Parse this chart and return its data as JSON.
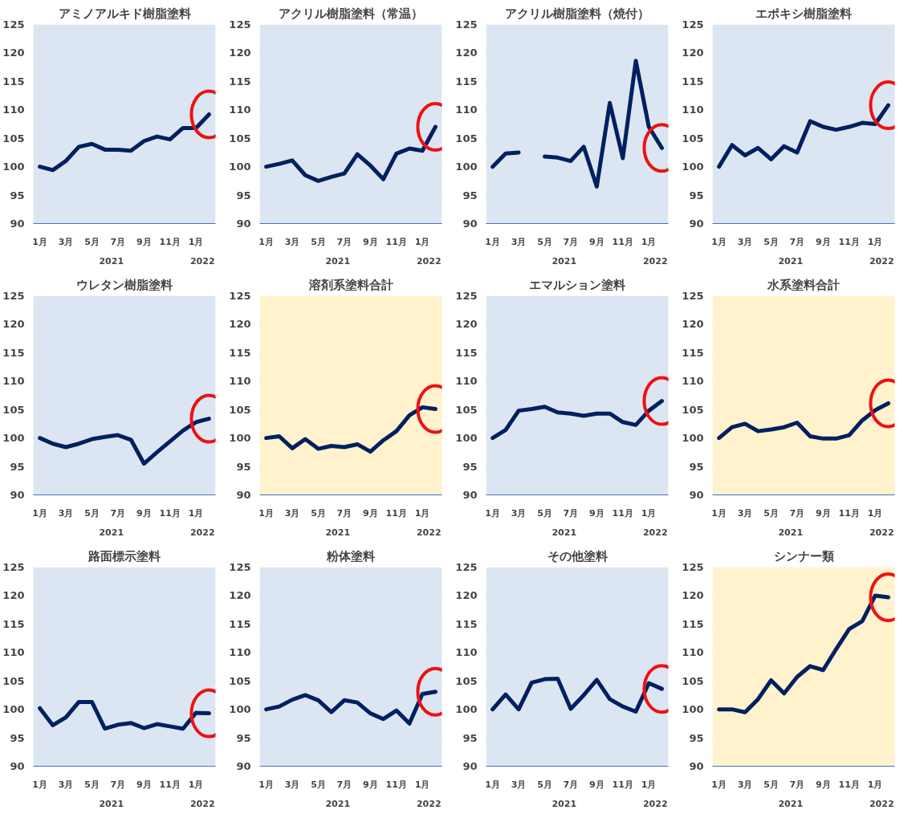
{
  "chart_data": [
    {
      "type": "line",
      "title": "アミノアルキド樹脂塗料",
      "categories": [
        "1月",
        null,
        "3月",
        null,
        "5月",
        null,
        "7月",
        null,
        "9月",
        null,
        "11月",
        null,
        "1月",
        null
      ],
      "values": [
        100,
        99.4,
        101,
        103.5,
        104,
        103,
        103,
        102.8,
        104.5,
        105.3,
        104.8,
        106.8,
        106.8,
        109.2
      ],
      "color": "#002060",
      "ylim": [
        90,
        125
      ],
      "yticks": [
        90,
        95,
        100,
        105,
        110,
        115,
        120,
        125
      ],
      "grid": "y",
      "bands": [
        {
          "axis": "y",
          "from": 90,
          "to": 125,
          "color": "#dce6f2"
        }
      ],
      "annotations": [
        "2021",
        "2022"
      ]
    },
    {
      "type": "line",
      "title": "アクリル樹脂塗料（常温）",
      "categories": [
        "1月",
        null,
        "3月",
        null,
        "5月",
        null,
        "7月",
        null,
        "9月",
        null,
        "11月",
        null,
        "1月",
        null
      ],
      "values": [
        100,
        100.5,
        101.1,
        98.5,
        97.5,
        98.2,
        98.8,
        102.2,
        100.2,
        97.8,
        102.3,
        103.2,
        102.8,
        107
      ],
      "color": "#002060",
      "ylim": [
        90,
        125
      ],
      "yticks": [
        90,
        95,
        100,
        105,
        110,
        115,
        120,
        125
      ],
      "grid": "y",
      "bands": [
        {
          "axis": "y",
          "from": 90,
          "to": 125,
          "color": "#dce6f2"
        }
      ],
      "annotations": [
        "2021",
        "2022"
      ]
    },
    {
      "type": "line",
      "title": "アクリル樹脂塗料（焼付）",
      "categories": [
        "1月",
        null,
        "3月",
        null,
        "5月",
        null,
        "7月",
        null,
        "9月",
        null,
        "11月",
        null,
        "1月",
        null
      ],
      "values": [
        100,
        102.3,
        102.5,
        null,
        101.8,
        101.6,
        101,
        103.5,
        96.5,
        111.2,
        101.5,
        118.6,
        107,
        103.3
      ],
      "color": "#002060",
      "ylim": [
        90,
        125
      ],
      "yticks": [
        90,
        95,
        100,
        105,
        110,
        115,
        120,
        125
      ],
      "grid": "y",
      "bands": [
        {
          "axis": "y",
          "from": 90,
          "to": 125,
          "color": "#dce6f2"
        }
      ],
      "annotations": [
        "2021",
        "2022"
      ]
    },
    {
      "type": "line",
      "title": "エポキシ樹脂塗料",
      "categories": [
        "1月",
        null,
        "3月",
        null,
        "5月",
        null,
        "7月",
        null,
        "9月",
        null,
        "11月",
        null,
        "1月",
        null
      ],
      "values": [
        100,
        103.8,
        102,
        103.3,
        101.3,
        103.6,
        102.5,
        108,
        107,
        106.5,
        107,
        107.7,
        107.5,
        110.8
      ],
      "color": "#002060",
      "ylim": [
        90,
        125
      ],
      "yticks": [
        90,
        95,
        100,
        105,
        110,
        115,
        120,
        125
      ],
      "grid": "y",
      "bands": [
        {
          "axis": "y",
          "from": 90,
          "to": 125,
          "color": "#dce6f2"
        }
      ],
      "annotations": [
        "2021",
        "2022"
      ]
    },
    {
      "type": "line",
      "title": "ウレタン樹脂塗料",
      "categories": [
        "1月",
        null,
        "3月",
        null,
        "5月",
        null,
        "7月",
        null,
        "9月",
        null,
        "11月",
        null,
        "1月",
        null
      ],
      "values": [
        100,
        99,
        98.4,
        99,
        99.8,
        100.2,
        100.5,
        99.7,
        95.5,
        97.5,
        99.4,
        101.3,
        102.8,
        103.4
      ],
      "color": "#002060",
      "ylim": [
        90,
        125
      ],
      "yticks": [
        90,
        95,
        100,
        105,
        110,
        115,
        120,
        125
      ],
      "grid": "y",
      "bands": [
        {
          "axis": "y",
          "from": 90,
          "to": 125,
          "color": "#dce6f2"
        }
      ],
      "annotations": [
        "2021",
        "2022"
      ]
    },
    {
      "type": "line",
      "title": "溶剤系塗料合計",
      "categories": [
        "1月",
        null,
        "3月",
        null,
        "5月",
        null,
        "7月",
        null,
        "9月",
        null,
        "11月",
        null,
        "1月",
        null
      ],
      "values": [
        100,
        100.3,
        98.2,
        99.8,
        98.1,
        98.6,
        98.4,
        98.9,
        97.6,
        99.6,
        101.2,
        104,
        105.4,
        105.1
      ],
      "color": "#002060",
      "ylim": [
        90,
        125
      ],
      "yticks": [
        90,
        95,
        100,
        105,
        110,
        115,
        120,
        125
      ],
      "grid": "y",
      "bands": [
        {
          "axis": "y",
          "from": 90,
          "to": 125,
          "color": "#fff2cc"
        }
      ],
      "annotations": [
        "2021",
        "2022"
      ]
    },
    {
      "type": "line",
      "title": "エマルション塗料",
      "categories": [
        "1月",
        null,
        "3月",
        null,
        "5月",
        null,
        "7月",
        null,
        "9月",
        null,
        "11月",
        null,
        "1月",
        null
      ],
      "values": [
        100,
        101.4,
        104.8,
        105.1,
        105.5,
        104.5,
        104.3,
        103.9,
        104.3,
        104.3,
        102.8,
        102.3,
        104.8,
        106.5
      ],
      "color": "#002060",
      "ylim": [
        90,
        125
      ],
      "yticks": [
        90,
        95,
        100,
        105,
        110,
        115,
        120,
        125
      ],
      "grid": "y",
      "bands": [
        {
          "axis": "y",
          "from": 90,
          "to": 125,
          "color": "#dce6f2"
        }
      ],
      "annotations": [
        "2021",
        "2022"
      ]
    },
    {
      "type": "line",
      "title": "水系塗料合計",
      "categories": [
        "1月",
        null,
        "3月",
        null,
        "5月",
        null,
        "7月",
        null,
        "9月",
        null,
        "11月",
        null,
        "1月",
        null
      ],
      "values": [
        100,
        101.9,
        102.5,
        101.2,
        101.5,
        101.9,
        102.7,
        100.3,
        99.9,
        99.9,
        100.5,
        103.1,
        104.9,
        106.1
      ],
      "color": "#002060",
      "ylim": [
        90,
        125
      ],
      "yticks": [
        90,
        95,
        100,
        105,
        110,
        115,
        120,
        125
      ],
      "grid": "y",
      "bands": [
        {
          "axis": "y",
          "from": 90,
          "to": 125,
          "color": "#fff2cc"
        }
      ],
      "annotations": [
        "2021",
        "2022"
      ]
    },
    {
      "type": "line",
      "title": "路面標示塗料",
      "categories": [
        "1月",
        null,
        "3月",
        null,
        "5月",
        null,
        "7月",
        null,
        "9月",
        null,
        "11月",
        null,
        "1月",
        null
      ],
      "values": [
        100.2,
        97.2,
        98.6,
        101.3,
        101.3,
        96.6,
        97.3,
        97.6,
        96.7,
        97.4,
        97,
        96.6,
        99.4,
        99.3
      ],
      "color": "#002060",
      "ylim": [
        90,
        125
      ],
      "yticks": [
        90,
        95,
        100,
        105,
        110,
        115,
        120,
        125
      ],
      "grid": "y",
      "bands": [
        {
          "axis": "y",
          "from": 90,
          "to": 125,
          "color": "#dce6f2"
        }
      ],
      "annotations": [
        "2021",
        "2022"
      ]
    },
    {
      "type": "line",
      "title": "粉体塗料",
      "categories": [
        "1月",
        null,
        "3月",
        null,
        "5月",
        null,
        "7月",
        null,
        "9月",
        null,
        "11月",
        null,
        "1月",
        null
      ],
      "values": [
        100,
        100.5,
        101.7,
        102.5,
        101.6,
        99.5,
        101.6,
        101.2,
        99.3,
        98.3,
        99.8,
        97.5,
        102.7,
        103.1
      ],
      "color": "#002060",
      "ylim": [
        90,
        125
      ],
      "yticks": [
        90,
        95,
        100,
        105,
        110,
        115,
        120,
        125
      ],
      "grid": "y",
      "bands": [
        {
          "axis": "y",
          "from": 90,
          "to": 125,
          "color": "#dce6f2"
        }
      ],
      "annotations": [
        "2021",
        "2022"
      ]
    },
    {
      "type": "line",
      "title": "その他塗料",
      "categories": [
        "1月",
        null,
        "3月",
        null,
        "5月",
        null,
        "7月",
        null,
        "9月",
        null,
        "11月",
        null,
        "1月",
        null
      ],
      "values": [
        100,
        102.6,
        100,
        104.7,
        105.3,
        105.4,
        100.1,
        102.5,
        105.2,
        101.8,
        100.5,
        99.6,
        104.6,
        103.6
      ],
      "color": "#002060",
      "ylim": [
        90,
        125
      ],
      "yticks": [
        90,
        95,
        100,
        105,
        110,
        115,
        120,
        125
      ],
      "grid": "y",
      "bands": [
        {
          "axis": "y",
          "from": 90,
          "to": 125,
          "color": "#dce6f2"
        }
      ],
      "annotations": [
        "2021",
        "2022"
      ]
    },
    {
      "type": "line",
      "title": "シンナー類",
      "categories": [
        "1月",
        null,
        "3月",
        null,
        "5月",
        null,
        "7月",
        null,
        "9月",
        null,
        "11月",
        null,
        "1月",
        null
      ],
      "values": [
        100,
        100,
        99.5,
        101.8,
        105.1,
        102.8,
        105.7,
        107.6,
        106.9,
        110.6,
        114.1,
        115.5,
        120,
        119.7
      ],
      "color": "#002060",
      "ylim": [
        90,
        125
      ],
      "yticks": [
        90,
        95,
        100,
        105,
        110,
        115,
        120,
        125
      ],
      "grid": "y",
      "bands": [
        {
          "axis": "y",
          "from": 90,
          "to": 125,
          "color": "#fff2cc"
        }
      ],
      "annotations": [
        "2021",
        "2022"
      ]
    }
  ]
}
